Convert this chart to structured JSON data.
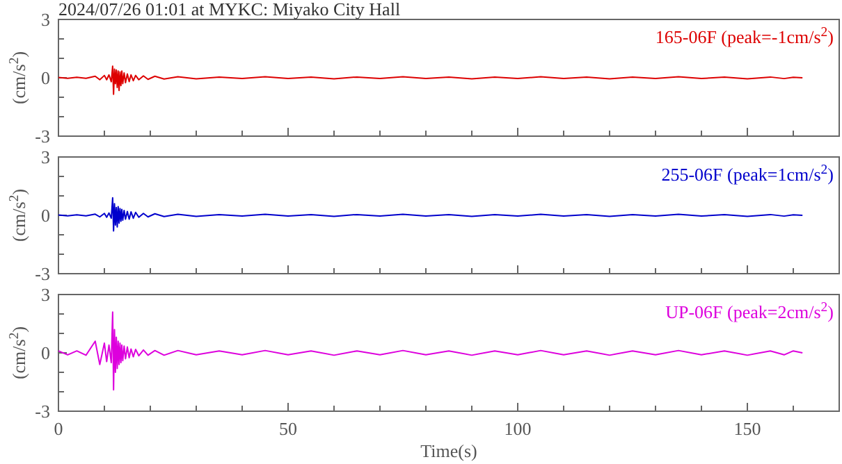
{
  "chart_data": [
    {
      "type": "line",
      "title": "2024/07/26 01:01 at MYKC: Miyako City Hall",
      "ylabel": "(cm/s$^{2}$)",
      "legend": "top right",
      "tick_labels": "y",
      "grid": false,
      "marker": "none",
      "line_style": "solid",
      "xlim": [
        0,
        170
      ],
      "ylim": [
        -3,
        3
      ],
      "xticks": [
        0,
        {
          "value": 10,
          "label": null
        },
        {
          "value": 20,
          "label": null
        },
        {
          "value": 30,
          "label": null
        },
        {
          "value": 40,
          "label": null
        },
        50,
        {
          "value": 60,
          "label": null
        },
        {
          "value": 70,
          "label": null
        },
        {
          "value": 80,
          "label": null
        },
        {
          "value": 90,
          "label": null
        },
        100,
        {
          "value": 110,
          "label": null
        },
        {
          "value": 120,
          "label": null
        },
        {
          "value": 130,
          "label": null
        },
        {
          "value": 140,
          "label": null
        },
        150,
        {
          "value": 160,
          "label": null
        }
      ],
      "yticks": [
        -3,
        {
          "value": -2,
          "label": null
        },
        {
          "value": -1,
          "label": null
        },
        0,
        {
          "value": 1,
          "label": null
        },
        {
          "value": 2,
          "label": null
        },
        3
      ],
      "x": [
        0,
        2,
        4,
        6,
        8,
        9,
        10,
        10.5,
        11,
        11.5,
        11.8,
        12,
        12.2,
        12.4,
        12.6,
        12.8,
        13,
        13.2,
        13.4,
        13.6,
        13.8,
        14,
        14.3,
        14.6,
        15,
        15.4,
        15.8,
        16.3,
        16.8,
        17.5,
        18.5,
        19.5,
        21,
        23,
        26,
        30,
        35,
        40,
        45,
        50,
        55,
        60,
        65,
        70,
        75,
        80,
        85,
        90,
        95,
        100,
        105,
        110,
        115,
        120,
        125,
        130,
        135,
        140,
        145,
        150,
        155,
        158,
        160,
        162
      ],
      "series": [
        {
          "name": "165-06F (peak=-1cm/s$^{2}$)",
          "color": "#dd0000",
          "values": [
            0.02,
            -0.03,
            0.03,
            -0.03,
            0.08,
            -0.1,
            0.12,
            -0.1,
            0.15,
            -0.2,
            0.6,
            -0.85,
            0.45,
            -0.3,
            0.4,
            -0.5,
            0.35,
            -0.65,
            0.3,
            -0.4,
            0.35,
            -0.3,
            0.25,
            -0.25,
            0.2,
            -0.2,
            0.15,
            -0.15,
            0.12,
            -0.1,
            0.1,
            -0.08,
            0.08,
            -0.06,
            0.05,
            -0.05,
            0.04,
            -0.04,
            0.05,
            -0.04,
            0.04,
            -0.05,
            0.04,
            -0.04,
            0.05,
            -0.04,
            0.04,
            -0.05,
            0.04,
            -0.04,
            0.05,
            -0.04,
            0.04,
            -0.05,
            0.04,
            -0.04,
            0.05,
            -0.04,
            0.04,
            -0.05,
            0.04,
            -0.04,
            0.03,
            0
          ]
        }
      ]
    },
    {
      "type": "line",
      "ylabel": "(cm/s$^{2}$)",
      "legend": "top right",
      "tick_labels": "y",
      "grid": false,
      "marker": "none",
      "line_style": "solid",
      "xlim": [
        0,
        170
      ],
      "ylim": [
        -3,
        3
      ],
      "xticks": [
        0,
        {
          "value": 10,
          "label": null
        },
        {
          "value": 20,
          "label": null
        },
        {
          "value": 30,
          "label": null
        },
        {
          "value": 40,
          "label": null
        },
        50,
        {
          "value": 60,
          "label": null
        },
        {
          "value": 70,
          "label": null
        },
        {
          "value": 80,
          "label": null
        },
        {
          "value": 90,
          "label": null
        },
        100,
        {
          "value": 110,
          "label": null
        },
        {
          "value": 120,
          "label": null
        },
        {
          "value": 130,
          "label": null
        },
        {
          "value": 140,
          "label": null
        },
        150,
        {
          "value": 160,
          "label": null
        }
      ],
      "yticks": [
        -3,
        {
          "value": -2,
          "label": null
        },
        {
          "value": -1,
          "label": null
        },
        0,
        {
          "value": 1,
          "label": null
        },
        {
          "value": 2,
          "label": null
        },
        3
      ],
      "x": [
        0,
        2,
        4,
        6,
        8,
        9,
        10,
        10.5,
        11,
        11.5,
        11.8,
        12,
        12.2,
        12.4,
        12.6,
        12.8,
        13,
        13.2,
        13.4,
        13.6,
        13.8,
        14,
        14.3,
        14.6,
        15,
        15.4,
        15.8,
        16.3,
        16.8,
        17.5,
        18.5,
        19.5,
        21,
        23,
        26,
        30,
        35,
        40,
        45,
        50,
        55,
        60,
        65,
        70,
        75,
        80,
        85,
        90,
        95,
        100,
        105,
        110,
        115,
        120,
        125,
        130,
        135,
        140,
        145,
        150,
        155,
        158,
        160,
        162
      ],
      "series": [
        {
          "name": "255-06F (peak=1cm/s$^{2}$)",
          "color": "#0000cc",
          "values": [
            0.02,
            -0.03,
            0.03,
            -0.03,
            0.06,
            -0.08,
            0.1,
            -0.1,
            0.12,
            -0.15,
            0.9,
            -0.8,
            0.6,
            -0.5,
            0.4,
            -0.6,
            0.45,
            -0.4,
            0.35,
            -0.3,
            0.3,
            -0.25,
            0.25,
            -0.2,
            0.2,
            -0.2,
            0.18,
            -0.15,
            0.15,
            -0.1,
            0.1,
            -0.08,
            0.08,
            -0.06,
            0.05,
            -0.05,
            0.04,
            -0.04,
            0.05,
            -0.04,
            0.04,
            -0.05,
            0.04,
            -0.04,
            0.05,
            -0.04,
            0.04,
            -0.05,
            0.04,
            -0.04,
            0.05,
            -0.04,
            0.04,
            -0.05,
            0.04,
            -0.04,
            0.05,
            -0.04,
            0.04,
            -0.05,
            0.04,
            -0.04,
            0.03,
            0
          ]
        }
      ]
    },
    {
      "type": "line",
      "xlabel": "Time(s)",
      "ylabel": "(cm/s$^{2}$)",
      "legend": "top right",
      "grid": false,
      "marker": "none",
      "line_style": "solid",
      "xlim": [
        0,
        170
      ],
      "ylim": [
        -3,
        3
      ],
      "xticks": [
        0,
        {
          "value": 10,
          "label": null
        },
        {
          "value": 20,
          "label": null
        },
        {
          "value": 30,
          "label": null
        },
        {
          "value": 40,
          "label": null
        },
        50,
        {
          "value": 60,
          "label": null
        },
        {
          "value": 70,
          "label": null
        },
        {
          "value": 80,
          "label": null
        },
        {
          "value": 90,
          "label": null
        },
        100,
        {
          "value": 110,
          "label": null
        },
        {
          "value": 120,
          "label": null
        },
        {
          "value": 130,
          "label": null
        },
        {
          "value": 140,
          "label": null
        },
        150,
        {
          "value": 160,
          "label": null
        }
      ],
      "yticks": [
        -3,
        {
          "value": -2,
          "label": null
        },
        {
          "value": -1,
          "label": null
        },
        0,
        {
          "value": 1,
          "label": null
        },
        {
          "value": 2,
          "label": null
        },
        3
      ],
      "x": [
        0,
        2,
        4,
        6,
        8,
        9,
        10,
        10.5,
        11,
        11.5,
        11.8,
        12,
        12.2,
        12.4,
        12.6,
        12.8,
        13,
        13.2,
        13.4,
        13.6,
        13.8,
        14,
        14.3,
        14.6,
        15,
        15.4,
        15.8,
        16.3,
        16.8,
        17.5,
        18.5,
        19.5,
        21,
        23,
        26,
        30,
        35,
        40,
        45,
        50,
        55,
        60,
        65,
        70,
        75,
        80,
        85,
        90,
        95,
        100,
        105,
        110,
        115,
        120,
        125,
        130,
        135,
        140,
        145,
        150,
        155,
        158,
        160,
        162
      ],
      "series": [
        {
          "name": "UP-06F (peak=2cm/s$^{2}$)",
          "color": "#dd00dd",
          "values": [
            0.1,
            -0.1,
            0.1,
            -0.12,
            0.6,
            -0.6,
            0.5,
            -0.45,
            0.4,
            -0.5,
            2.1,
            -1.9,
            1.2,
            -1.0,
            0.8,
            -0.8,
            0.6,
            -0.6,
            0.5,
            -0.5,
            0.4,
            -0.4,
            0.35,
            -0.3,
            0.3,
            -0.25,
            0.2,
            -0.2,
            0.18,
            -0.15,
            0.15,
            -0.12,
            0.12,
            -0.12,
            0.12,
            -0.1,
            0.1,
            -0.1,
            0.12,
            -0.1,
            0.1,
            -0.12,
            0.1,
            -0.1,
            0.12,
            -0.1,
            0.1,
            -0.12,
            0.1,
            -0.1,
            0.12,
            -0.1,
            0.1,
            -0.12,
            0.1,
            -0.1,
            0.12,
            -0.1,
            0.1,
            -0.12,
            0.1,
            -0.1,
            0.1,
            0
          ]
        }
      ]
    }
  ]
}
